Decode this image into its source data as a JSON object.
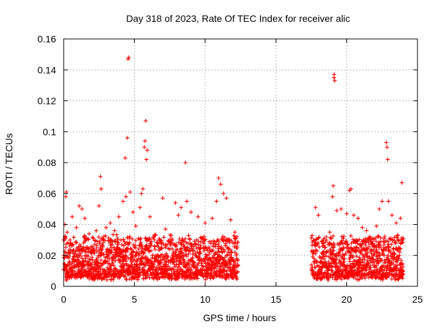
{
  "chart_data": {
    "type": "scatter",
    "title": "Day 318 of 2023, Rate Of TEC Index for receiver alic",
    "xlabel": "GPS time / hours",
    "ylabel": "ROTI / TECUs",
    "xlim": [
      0,
      25
    ],
    "ylim": [
      0,
      0.16
    ],
    "xticks": [
      {
        "value": 0,
        "label": "0"
      },
      {
        "value": 5,
        "label": "5"
      },
      {
        "value": 10,
        "label": "10"
      },
      {
        "value": 15,
        "label": "15"
      },
      {
        "value": 20,
        "label": "20"
      },
      {
        "value": 25,
        "label": "25"
      }
    ],
    "yticks": [
      {
        "value": 0,
        "label": "0"
      },
      {
        "value": 0.02,
        "label": "0.02"
      },
      {
        "value": 0.04,
        "label": "0.04"
      },
      {
        "value": 0.06,
        "label": "0.06"
      },
      {
        "value": 0.08,
        "label": "0.08"
      },
      {
        "value": 0.1,
        "label": "0.1"
      },
      {
        "value": 0.12,
        "label": "0.12"
      },
      {
        "value": 0.14,
        "label": "0.14"
      },
      {
        "value": 0.16,
        "label": "0.16"
      }
    ],
    "grid": true,
    "marker": "+",
    "color": "#ff0000",
    "data_segments": [
      {
        "x_start": 0.0,
        "x_end": 12.3
      },
      {
        "x_start": 17.5,
        "x_end": 24.0
      }
    ],
    "series": [
      {
        "name": "ROTI",
        "points": [
          [
            0.1,
            0.04
          ],
          [
            0.15,
            0.058
          ],
          [
            0.2,
            0.061
          ],
          [
            0.25,
            0.035
          ],
          [
            0.3,
            0.028
          ],
          [
            0.6,
            0.045
          ],
          [
            0.9,
            0.038
          ],
          [
            1.1,
            0.052
          ],
          [
            1.3,
            0.05
          ],
          [
            1.5,
            0.044
          ],
          [
            1.8,
            0.034
          ],
          [
            2.1,
            0.031
          ],
          [
            2.3,
            0.036
          ],
          [
            2.5,
            0.052
          ],
          [
            2.6,
            0.071
          ],
          [
            2.65,
            0.063
          ],
          [
            3.0,
            0.038
          ],
          [
            3.3,
            0.041
          ],
          [
            3.6,
            0.036
          ],
          [
            3.9,
            0.045
          ],
          [
            4.2,
            0.055
          ],
          [
            4.35,
            0.083
          ],
          [
            4.4,
            0.058
          ],
          [
            4.5,
            0.096
          ],
          [
            4.55,
            0.147
          ],
          [
            4.6,
            0.148
          ],
          [
            4.7,
            0.061
          ],
          [
            4.9,
            0.048
          ],
          [
            5.1,
            0.039
          ],
          [
            5.4,
            0.051
          ],
          [
            5.5,
            0.06
          ],
          [
            5.6,
            0.063
          ],
          [
            5.7,
            0.09
          ],
          [
            5.75,
            0.094
          ],
          [
            5.8,
            0.107
          ],
          [
            5.85,
            0.082
          ],
          [
            5.9,
            0.088
          ],
          [
            6.1,
            0.045
          ],
          [
            6.4,
            0.033
          ],
          [
            6.9,
            0.028
          ],
          [
            7.0,
            0.057
          ],
          [
            7.2,
            0.037
          ],
          [
            7.6,
            0.033
          ],
          [
            7.9,
            0.054
          ],
          [
            8.1,
            0.046
          ],
          [
            8.3,
            0.051
          ],
          [
            8.6,
            0.08
          ],
          [
            8.7,
            0.055
          ],
          [
            9.0,
            0.048
          ],
          [
            9.5,
            0.045
          ],
          [
            10.0,
            0.041
          ],
          [
            10.5,
            0.044
          ],
          [
            10.8,
            0.055
          ],
          [
            10.95,
            0.07
          ],
          [
            11.1,
            0.066
          ],
          [
            11.3,
            0.06
          ],
          [
            11.5,
            0.057
          ],
          [
            11.8,
            0.043
          ],
          [
            12.1,
            0.035
          ],
          [
            17.8,
            0.051
          ],
          [
            18.0,
            0.046
          ],
          [
            18.4,
            0.031
          ],
          [
            18.8,
            0.035
          ],
          [
            19.0,
            0.058
          ],
          [
            19.05,
            0.065
          ],
          [
            19.1,
            0.135
          ],
          [
            19.12,
            0.137
          ],
          [
            19.15,
            0.133
          ],
          [
            19.3,
            0.049
          ],
          [
            19.6,
            0.05
          ],
          [
            20.0,
            0.047
          ],
          [
            20.2,
            0.062
          ],
          [
            20.3,
            0.063
          ],
          [
            20.5,
            0.046
          ],
          [
            20.8,
            0.044
          ],
          [
            21.1,
            0.038
          ],
          [
            21.4,
            0.036
          ],
          [
            21.8,
            0.028
          ],
          [
            22.1,
            0.039
          ],
          [
            22.3,
            0.05
          ],
          [
            22.5,
            0.055
          ],
          [
            22.8,
            0.093
          ],
          [
            22.85,
            0.09
          ],
          [
            22.9,
            0.082
          ],
          [
            22.95,
            0.055
          ],
          [
            23.2,
            0.046
          ],
          [
            23.5,
            0.041
          ],
          [
            23.8,
            0.044
          ],
          [
            23.9,
            0.067
          ]
        ]
      }
    ]
  }
}
